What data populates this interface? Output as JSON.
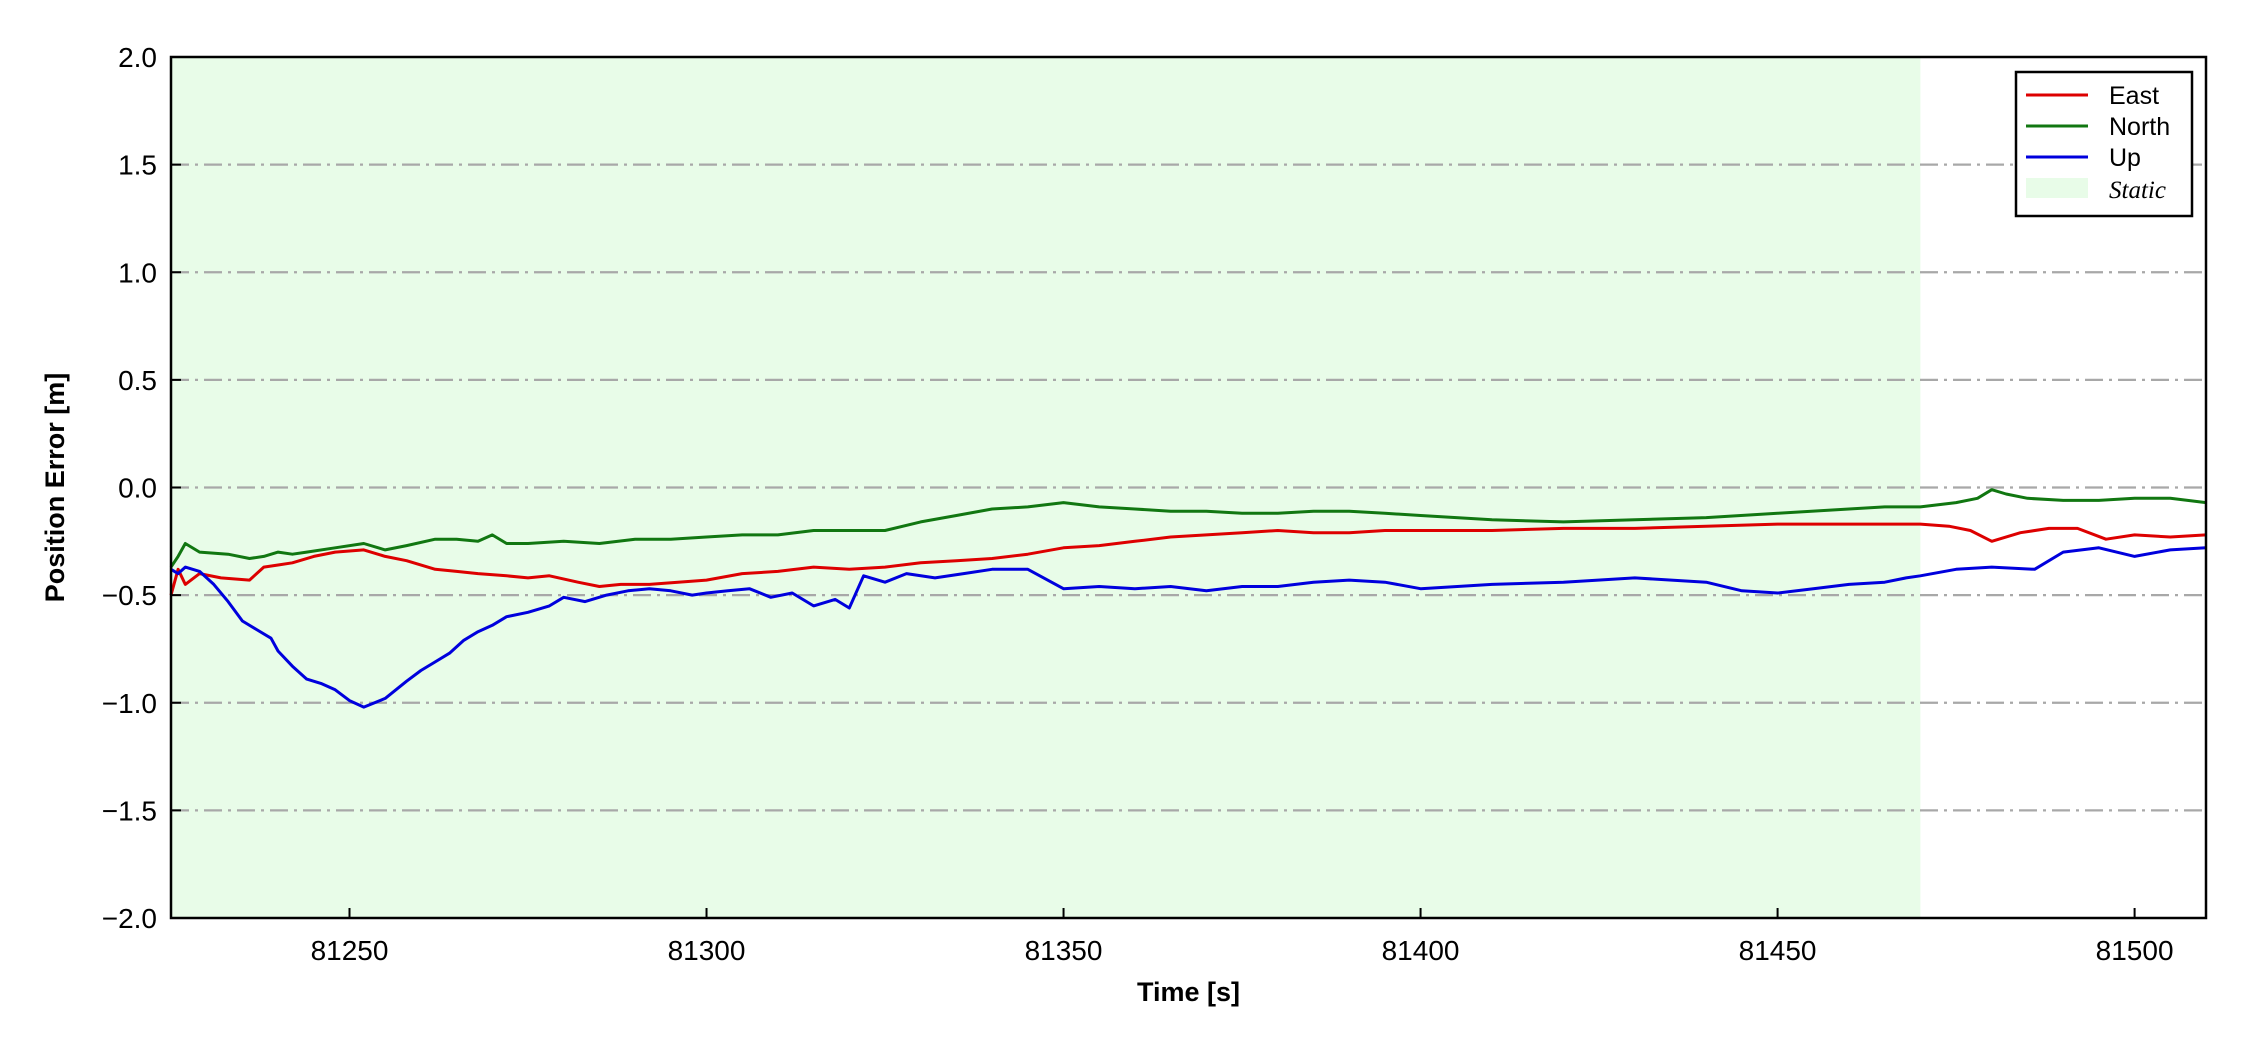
{
  "chart_data": {
    "type": "line",
    "title": "",
    "xlabel": "Time [s]",
    "ylabel": "Position Error [m]",
    "xlim": [
      81225,
      81510
    ],
    "ylim": [
      -2.0,
      2.0
    ],
    "xticks": [
      81250,
      81300,
      81350,
      81400,
      81450,
      81500
    ],
    "xtick_labels": [
      "81250",
      "81300",
      "81350",
      "81400",
      "81450",
      "81500"
    ],
    "yticks": [
      2.0,
      1.5,
      1.0,
      0.5,
      0.0,
      -0.5,
      -1.0,
      -1.5,
      -2.0
    ],
    "ytick_labels": [
      "2.0",
      "1.5",
      "1.0",
      "0.5",
      "0.0",
      "−0.5",
      "−1.0",
      "−1.5",
      "−2.0"
    ],
    "grid": "horizontal dash-dot, gray",
    "legend_position": "top-right",
    "shaded_region": {
      "name": "Static",
      "x_start": 81225,
      "x_end": 81470,
      "color": "#e8fce8"
    },
    "series": [
      {
        "name": "East",
        "color": "#dd0000",
        "x": [
          81225,
          81226,
          81227,
          81229,
          81232,
          81236,
          81238,
          81240,
          81242,
          81245,
          81248,
          81252,
          81255,
          81258,
          81262,
          81265,
          81268,
          81272,
          81275,
          81278,
          81282,
          81285,
          81288,
          81292,
          81296,
          81300,
          81305,
          81310,
          81315,
          81320,
          81325,
          81330,
          81335,
          81340,
          81345,
          81350,
          81355,
          81360,
          81365,
          81370,
          81375,
          81380,
          81385,
          81390,
          81395,
          81400,
          81410,
          81420,
          81430,
          81440,
          81450,
          81460,
          81465,
          81470,
          81474,
          81477,
          81480,
          81484,
          81488,
          81492,
          81496,
          81500,
          81505,
          81510
        ],
        "values": [
          -0.5,
          -0.38,
          -0.45,
          -0.4,
          -0.42,
          -0.43,
          -0.37,
          -0.36,
          -0.35,
          -0.32,
          -0.3,
          -0.29,
          -0.32,
          -0.34,
          -0.38,
          -0.39,
          -0.4,
          -0.41,
          -0.42,
          -0.41,
          -0.44,
          -0.46,
          -0.45,
          -0.45,
          -0.44,
          -0.43,
          -0.4,
          -0.39,
          -0.37,
          -0.38,
          -0.37,
          -0.35,
          -0.34,
          -0.33,
          -0.31,
          -0.28,
          -0.27,
          -0.25,
          -0.23,
          -0.22,
          -0.21,
          -0.2,
          -0.21,
          -0.21,
          -0.2,
          -0.2,
          -0.2,
          -0.19,
          -0.19,
          -0.18,
          -0.17,
          -0.17,
          -0.17,
          -0.17,
          -0.18,
          -0.2,
          -0.25,
          -0.21,
          -0.19,
          -0.19,
          -0.24,
          -0.22,
          -0.23,
          -0.22
        ]
      },
      {
        "name": "North",
        "color": "#117711",
        "x": [
          81225,
          81226,
          81227,
          81229,
          81233,
          81236,
          81238,
          81240,
          81242,
          81244,
          81248,
          81252,
          81255,
          81258,
          81262,
          81265,
          81268,
          81270,
          81272,
          81275,
          81280,
          81285,
          81290,
          81295,
          81300,
          81305,
          81310,
          81315,
          81320,
          81325,
          81330,
          81335,
          81340,
          81345,
          81350,
          81355,
          81360,
          81365,
          81370,
          81375,
          81380,
          81385,
          81390,
          81395,
          81400,
          81410,
          81420,
          81430,
          81440,
          81450,
          81460,
          81465,
          81470,
          81475,
          81478,
          81480,
          81482,
          81485,
          81490,
          81495,
          81500,
          81505,
          81510
        ],
        "values": [
          -0.37,
          -0.32,
          -0.26,
          -0.3,
          -0.31,
          -0.33,
          -0.32,
          -0.3,
          -0.31,
          -0.3,
          -0.28,
          -0.26,
          -0.29,
          -0.27,
          -0.24,
          -0.24,
          -0.25,
          -0.22,
          -0.26,
          -0.26,
          -0.25,
          -0.26,
          -0.24,
          -0.24,
          -0.23,
          -0.22,
          -0.22,
          -0.2,
          -0.2,
          -0.2,
          -0.16,
          -0.13,
          -0.1,
          -0.09,
          -0.07,
          -0.09,
          -0.1,
          -0.11,
          -0.11,
          -0.12,
          -0.12,
          -0.11,
          -0.11,
          -0.12,
          -0.13,
          -0.15,
          -0.16,
          -0.15,
          -0.14,
          -0.12,
          -0.1,
          -0.09,
          -0.09,
          -0.07,
          -0.05,
          -0.01,
          -0.03,
          -0.05,
          -0.06,
          -0.06,
          -0.05,
          -0.05,
          -0.07
        ]
      },
      {
        "name": "Up",
        "color": "#0000dd",
        "x": [
          81225,
          81226,
          81227,
          81229,
          81231,
          81233,
          81235,
          81237,
          81239,
          81240,
          81242,
          81244,
          81246,
          81248,
          81250,
          81252,
          81255,
          81258,
          81260,
          81262,
          81264,
          81266,
          81268,
          81270,
          81272,
          81275,
          81278,
          81280,
          81283,
          81286,
          81289,
          81292,
          81295,
          81298,
          81300,
          81303,
          81306,
          81309,
          81312,
          81315,
          81318,
          81320,
          81322,
          81325,
          81328,
          81332,
          81336,
          81340,
          81345,
          81350,
          81355,
          81360,
          81365,
          81370,
          81375,
          81380,
          81385,
          81390,
          81395,
          81400,
          81410,
          81420,
          81430,
          81440,
          81445,
          81450,
          81455,
          81460,
          81465,
          81468,
          81470,
          81475,
          81480,
          81486,
          81490,
          81495,
          81500,
          81505,
          81510
        ],
        "values": [
          -0.38,
          -0.4,
          -0.37,
          -0.39,
          -0.45,
          -0.53,
          -0.62,
          -0.66,
          -0.7,
          -0.76,
          -0.83,
          -0.89,
          -0.91,
          -0.94,
          -0.99,
          -1.02,
          -0.98,
          -0.9,
          -0.85,
          -0.81,
          -0.77,
          -0.71,
          -0.67,
          -0.64,
          -0.6,
          -0.58,
          -0.55,
          -0.51,
          -0.53,
          -0.5,
          -0.48,
          -0.47,
          -0.48,
          -0.5,
          -0.49,
          -0.48,
          -0.47,
          -0.51,
          -0.49,
          -0.55,
          -0.52,
          -0.56,
          -0.41,
          -0.44,
          -0.4,
          -0.42,
          -0.4,
          -0.38,
          -0.38,
          -0.47,
          -0.46,
          -0.47,
          -0.46,
          -0.48,
          -0.46,
          -0.46,
          -0.44,
          -0.43,
          -0.44,
          -0.47,
          -0.45,
          -0.44,
          -0.42,
          -0.44,
          -0.48,
          -0.49,
          -0.47,
          -0.45,
          -0.44,
          -0.42,
          -0.41,
          -0.38,
          -0.37,
          -0.38,
          -0.3,
          -0.28,
          -0.32,
          -0.29,
          -0.28
        ]
      }
    ]
  }
}
